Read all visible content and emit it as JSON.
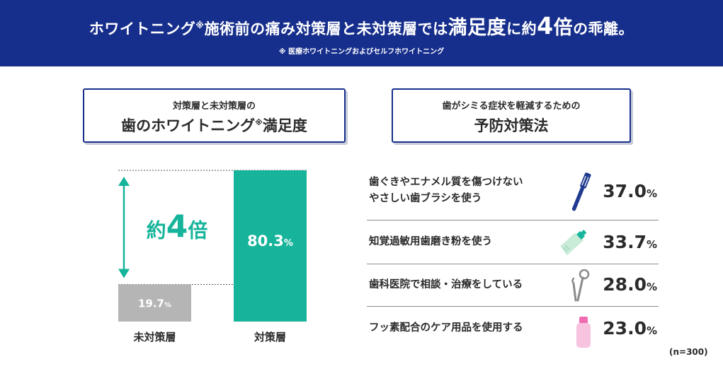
{
  "header": {
    "title_part1": "ホワイトニング",
    "title_mark": "※",
    "title_part2": "施術前の痛み対策層と未対策層では",
    "title_big1": "満足度",
    "title_mid": "に約",
    "title_num": "4",
    "title_big2": "倍",
    "title_end": "の乖離。",
    "note": "※ 医療ホワイトニングおよびセルフホワイトニング"
  },
  "left_panel": {
    "sub": "対策層と未対策層の",
    "main_part1": "歯のホワイトニング",
    "main_mark": "※",
    "main_part2": "満足度"
  },
  "right_panel": {
    "sub": "歯がシミる症状を軽減するための",
    "main": "予防対策法"
  },
  "chart_data": [
    {
      "type": "bar",
      "title": "対策層と未対策層の 歯のホワイトニング※満足度",
      "categories": [
        "未対策層",
        "対策層"
      ],
      "values": [
        19.7,
        80.3
      ],
      "value_labels": [
        "19.7",
        "80.3"
      ],
      "unit": "%",
      "annotation": {
        "prefix": "約",
        "number": "4",
        "suffix": "倍"
      },
      "colors": [
        "#b5b5b5",
        "#16b49a"
      ],
      "ylim": [
        0,
        80.3
      ]
    },
    {
      "type": "table",
      "title": "歯がシミる症状を軽減するための 予防対策法",
      "rows": [
        {
          "label_lines": [
            "歯ぐきやエナメル質を傷つけない",
            "やさしい歯ブラシを使う"
          ],
          "value": "37.0",
          "unit": "%",
          "icon": "toothbrush-icon"
        },
        {
          "label_lines": [
            "知覚過敏用歯磨き粉を使う"
          ],
          "value": "33.7",
          "unit": "%",
          "icon": "toothpaste-icon"
        },
        {
          "label_lines": [
            "歯科医院で相談・治療をしている"
          ],
          "value": "28.0",
          "unit": "%",
          "icon": "dental-tools-icon"
        },
        {
          "label_lines": [
            "フッ素配合のケア用品を使用する"
          ],
          "value": "23.0",
          "unit": "%",
          "icon": "fluoride-bottle-icon"
        }
      ],
      "sample_size": "(n=300)"
    }
  ],
  "colors": {
    "header_bg": "#172f8c",
    "accent_green": "#16b49a",
    "gray_bar": "#b5b5b5",
    "icon_blue": "#1f3a8f"
  }
}
